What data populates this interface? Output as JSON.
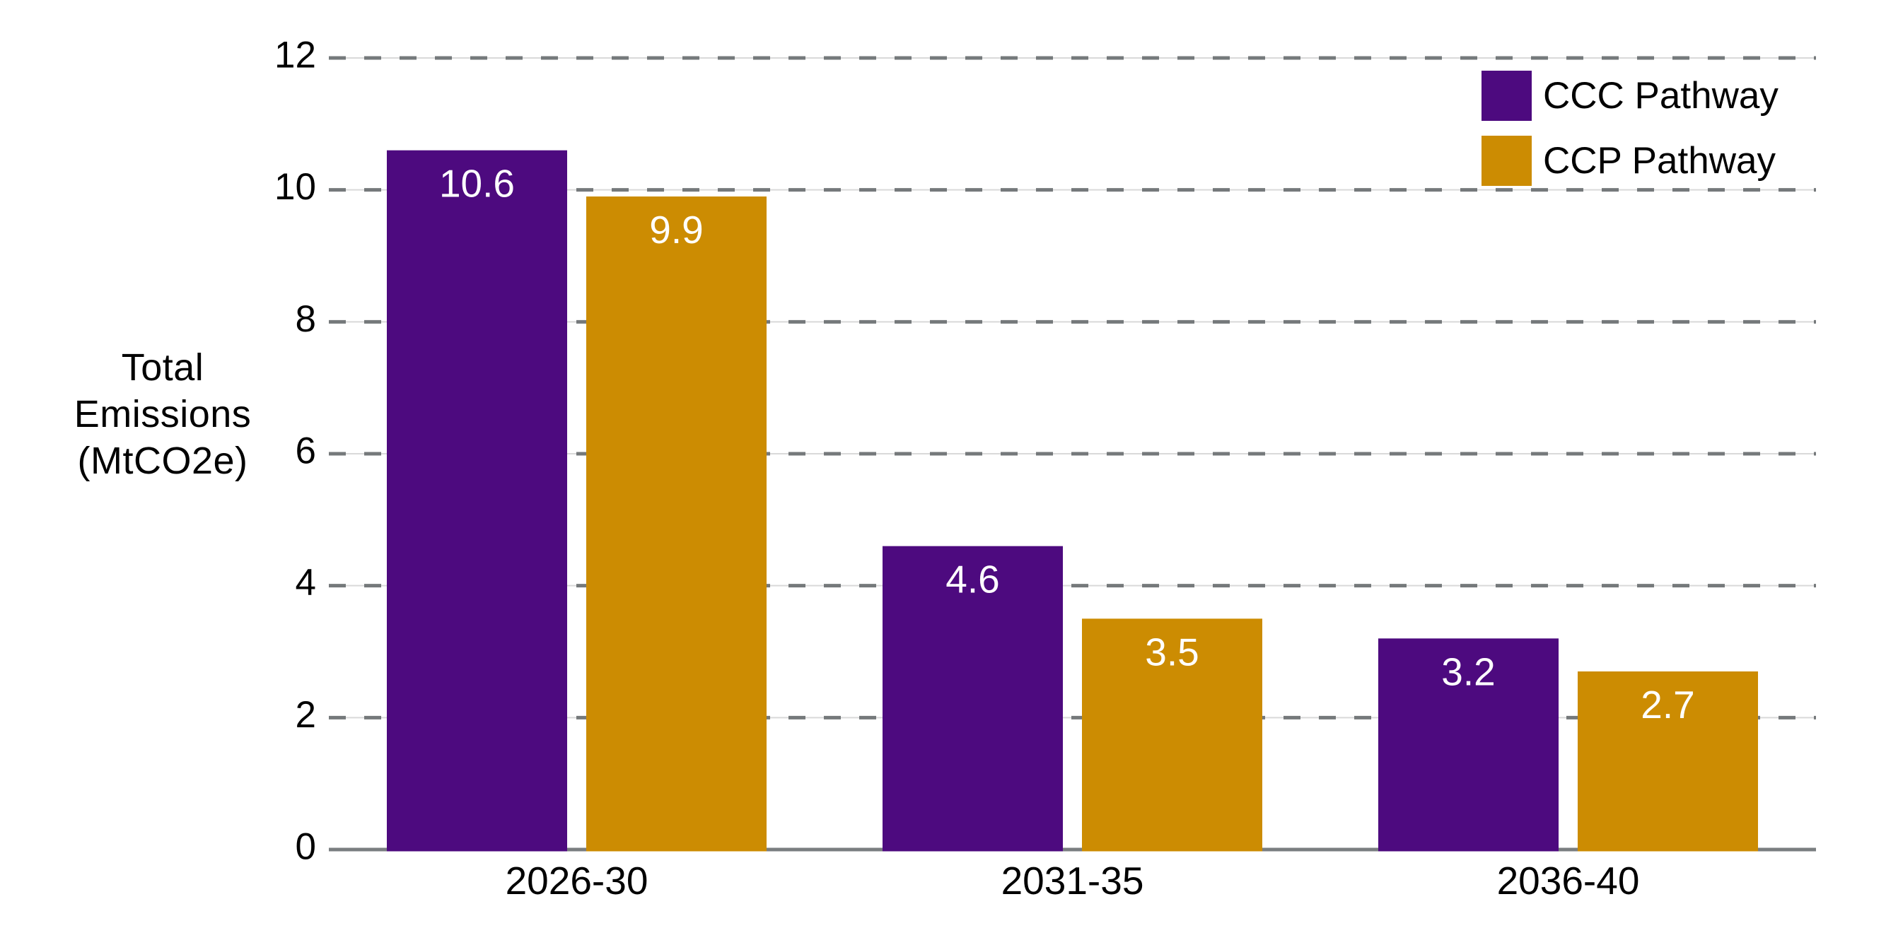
{
  "chart_data": {
    "type": "bar",
    "title": "",
    "categories": [
      "2026-30",
      "2031-35",
      "2036-40"
    ],
    "series": [
      {
        "name": "CCC Pathway",
        "color": "#4D0A7F",
        "values": [
          10.6,
          4.6,
          3.2
        ]
      },
      {
        "name": "CCP Pathway",
        "color": "#CC8C02",
        "values": [
          9.9,
          3.5,
          2.7
        ]
      }
    ],
    "ylabel": "Total Emissions (MtCO2e)",
    "ylabel_lines": [
      "Total",
      "Emissions",
      "(MtCO2e)"
    ],
    "yticks": [
      0,
      2,
      4,
      6,
      8,
      10,
      12
    ],
    "ylim": [
      0,
      12
    ],
    "grid": "horizontal dashed gridlines at each y tick",
    "legend_position": "top-right",
    "value_labels": "inside top of each bar, white text"
  },
  "colors": {
    "background": "#ffffff",
    "axis_line": "#7a7e80",
    "grid_dash": "#75797b",
    "grid_thin_line": "#d9d9d9",
    "text": "#000000",
    "value_label_text": "#ffffff",
    "series_ccc": "#4D0A7F",
    "series_ccp": "#CC8C02"
  }
}
